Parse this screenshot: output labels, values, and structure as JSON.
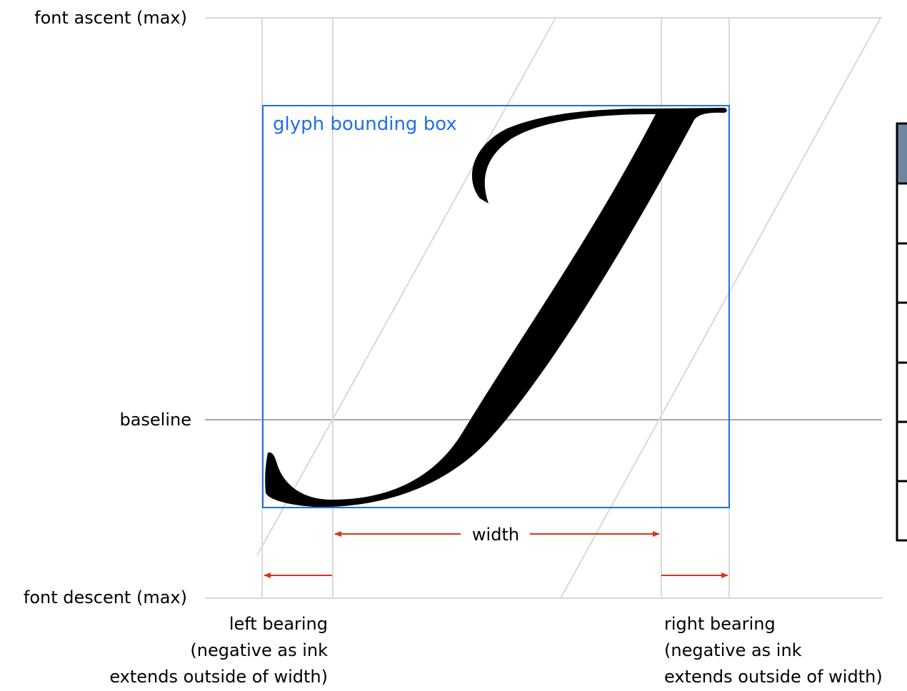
{
  "labels": {
    "ascent": "font ascent (max)",
    "baseline": "baseline",
    "descent": "font descent (max)",
    "bbox": "glyph bounding box",
    "width": "width",
    "left_bearing": [
      "left bearing",
      "(negative as ink",
      "extends outside of width)"
    ],
    "right_bearing": [
      "right bearing",
      "(negative as ink",
      "extends outside of width)"
    ]
  },
  "glyph": "J",
  "colors": {
    "guide": "#d9d9d9",
    "baseline": "#a6a6a6",
    "bbox": "#1f6fe5",
    "arrow": "#d9341b",
    "ink": "#000000",
    "table_header": "#6f86a3"
  },
  "table": {
    "rows": 6
  }
}
